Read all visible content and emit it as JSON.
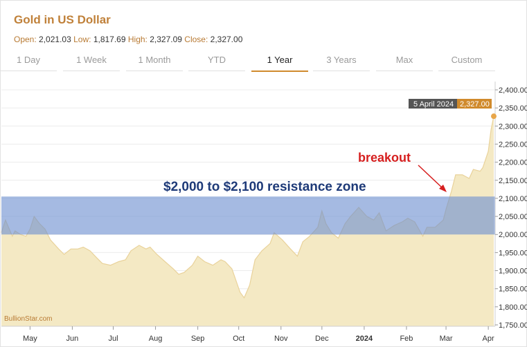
{
  "header": {
    "title": "Gold in US Dollar",
    "open_label": "Open:",
    "open": "2,021.03",
    "low_label": "Low:",
    "low": "1,817.69",
    "high_label": "High:",
    "high": "2,327.09",
    "close_label": "Close:",
    "close": "2,327.00"
  },
  "tabs": [
    {
      "label": "1 Day"
    },
    {
      "label": "1 Week"
    },
    {
      "label": "1 Month"
    },
    {
      "label": "YTD"
    },
    {
      "label": "1 Year",
      "active": true
    },
    {
      "label": "3 Years"
    },
    {
      "label": "Max"
    },
    {
      "label": "Custom"
    }
  ],
  "colors": {
    "area_fill": "#f4e9c4",
    "area_line": "#e9d29a",
    "zone": "#6d8fd0",
    "accent": "#d08a2c",
    "tooltip_dark": "#555555"
  },
  "tooltip": {
    "date": "5 April 2024",
    "value": "2,327.00"
  },
  "source": "BullionStar.com",
  "chart_data": {
    "type": "area",
    "y_ticks": [
      "2,400.00",
      "2,350.00",
      "2,300.00",
      "2,250.00",
      "2,200.00",
      "2,150.00",
      "2,100.00",
      "2,050.00",
      "2,000.00",
      "1,950.00",
      "1,900.00",
      "1,850.00",
      "1,800.00",
      "1,750.00"
    ],
    "ylim": [
      1750,
      2400
    ],
    "x_ticks": [
      "May",
      "Jun",
      "Jul",
      "Aug",
      "Sep",
      "Oct",
      "Nov",
      "Dec",
      "2024",
      "Feb",
      "Mar",
      "Apr"
    ],
    "grid": true,
    "annotations": {
      "zone_label": "$2,000 to $2,100 resistance zone",
      "zone_range": [
        2000,
        2105
      ],
      "breakout_label": "breakout"
    },
    "x": [
      "2023-04-10",
      "2023-04-13",
      "2023-04-18",
      "2023-04-20",
      "2023-04-24",
      "2023-04-28",
      "2023-05-01",
      "2023-05-04",
      "2023-05-08",
      "2023-05-12",
      "2023-05-16",
      "2023-05-22",
      "2023-05-26",
      "2023-05-31",
      "2023-06-05",
      "2023-06-09",
      "2023-06-14",
      "2023-06-19",
      "2023-06-23",
      "2023-06-29",
      "2023-07-05",
      "2023-07-10",
      "2023-07-14",
      "2023-07-20",
      "2023-07-25",
      "2023-07-28",
      "2023-08-02",
      "2023-08-08",
      "2023-08-14",
      "2023-08-18",
      "2023-08-22",
      "2023-08-28",
      "2023-09-01",
      "2023-09-06",
      "2023-09-12",
      "2023-09-18",
      "2023-09-21",
      "2023-09-26",
      "2023-10-02",
      "2023-10-05",
      "2023-10-09",
      "2023-10-13",
      "2023-10-18",
      "2023-10-24",
      "2023-10-27",
      "2023-11-02",
      "2023-11-08",
      "2023-11-13",
      "2023-11-17",
      "2023-11-22",
      "2023-11-28",
      "2023-12-01",
      "2023-12-04",
      "2023-12-08",
      "2023-12-13",
      "2023-12-18",
      "2023-12-22",
      "2023-12-28",
      "2024-01-03",
      "2024-01-08",
      "2024-01-12",
      "2024-01-17",
      "2024-01-23",
      "2024-01-29",
      "2024-02-02",
      "2024-02-07",
      "2024-02-13",
      "2024-02-16",
      "2024-02-22",
      "2024-02-28",
      "2024-03-01",
      "2024-03-05",
      "2024-03-08",
      "2024-03-13",
      "2024-03-18",
      "2024-03-21",
      "2024-03-26",
      "2024-03-28",
      "2024-04-01",
      "2024-04-03",
      "2024-04-05"
    ],
    "series": [
      {
        "values": [
          2005,
          2040,
          1995,
          2010,
          2000,
          1995,
          2015,
          2050,
          2030,
          2015,
          1985,
          1960,
          1945,
          1960,
          1960,
          1965,
          1955,
          1935,
          1920,
          1915,
          1925,
          1930,
          1955,
          1970,
          1960,
          1965,
          1945,
          1925,
          1905,
          1890,
          1895,
          1915,
          1940,
          1925,
          1915,
          1930,
          1925,
          1905,
          1840,
          1825,
          1860,
          1930,
          1955,
          1975,
          2005,
          1985,
          1960,
          1940,
          1980,
          1995,
          2020,
          2065,
          2030,
          2005,
          1990,
          2030,
          2050,
          2075,
          2050,
          2040,
          2060,
          2010,
          2025,
          2035,
          2045,
          2035,
          1995,
          2020,
          2020,
          2040,
          2070,
          2120,
          2165,
          2165,
          2155,
          2180,
          2175,
          2185,
          2230,
          2290,
          2327
        ]
      }
    ]
  }
}
